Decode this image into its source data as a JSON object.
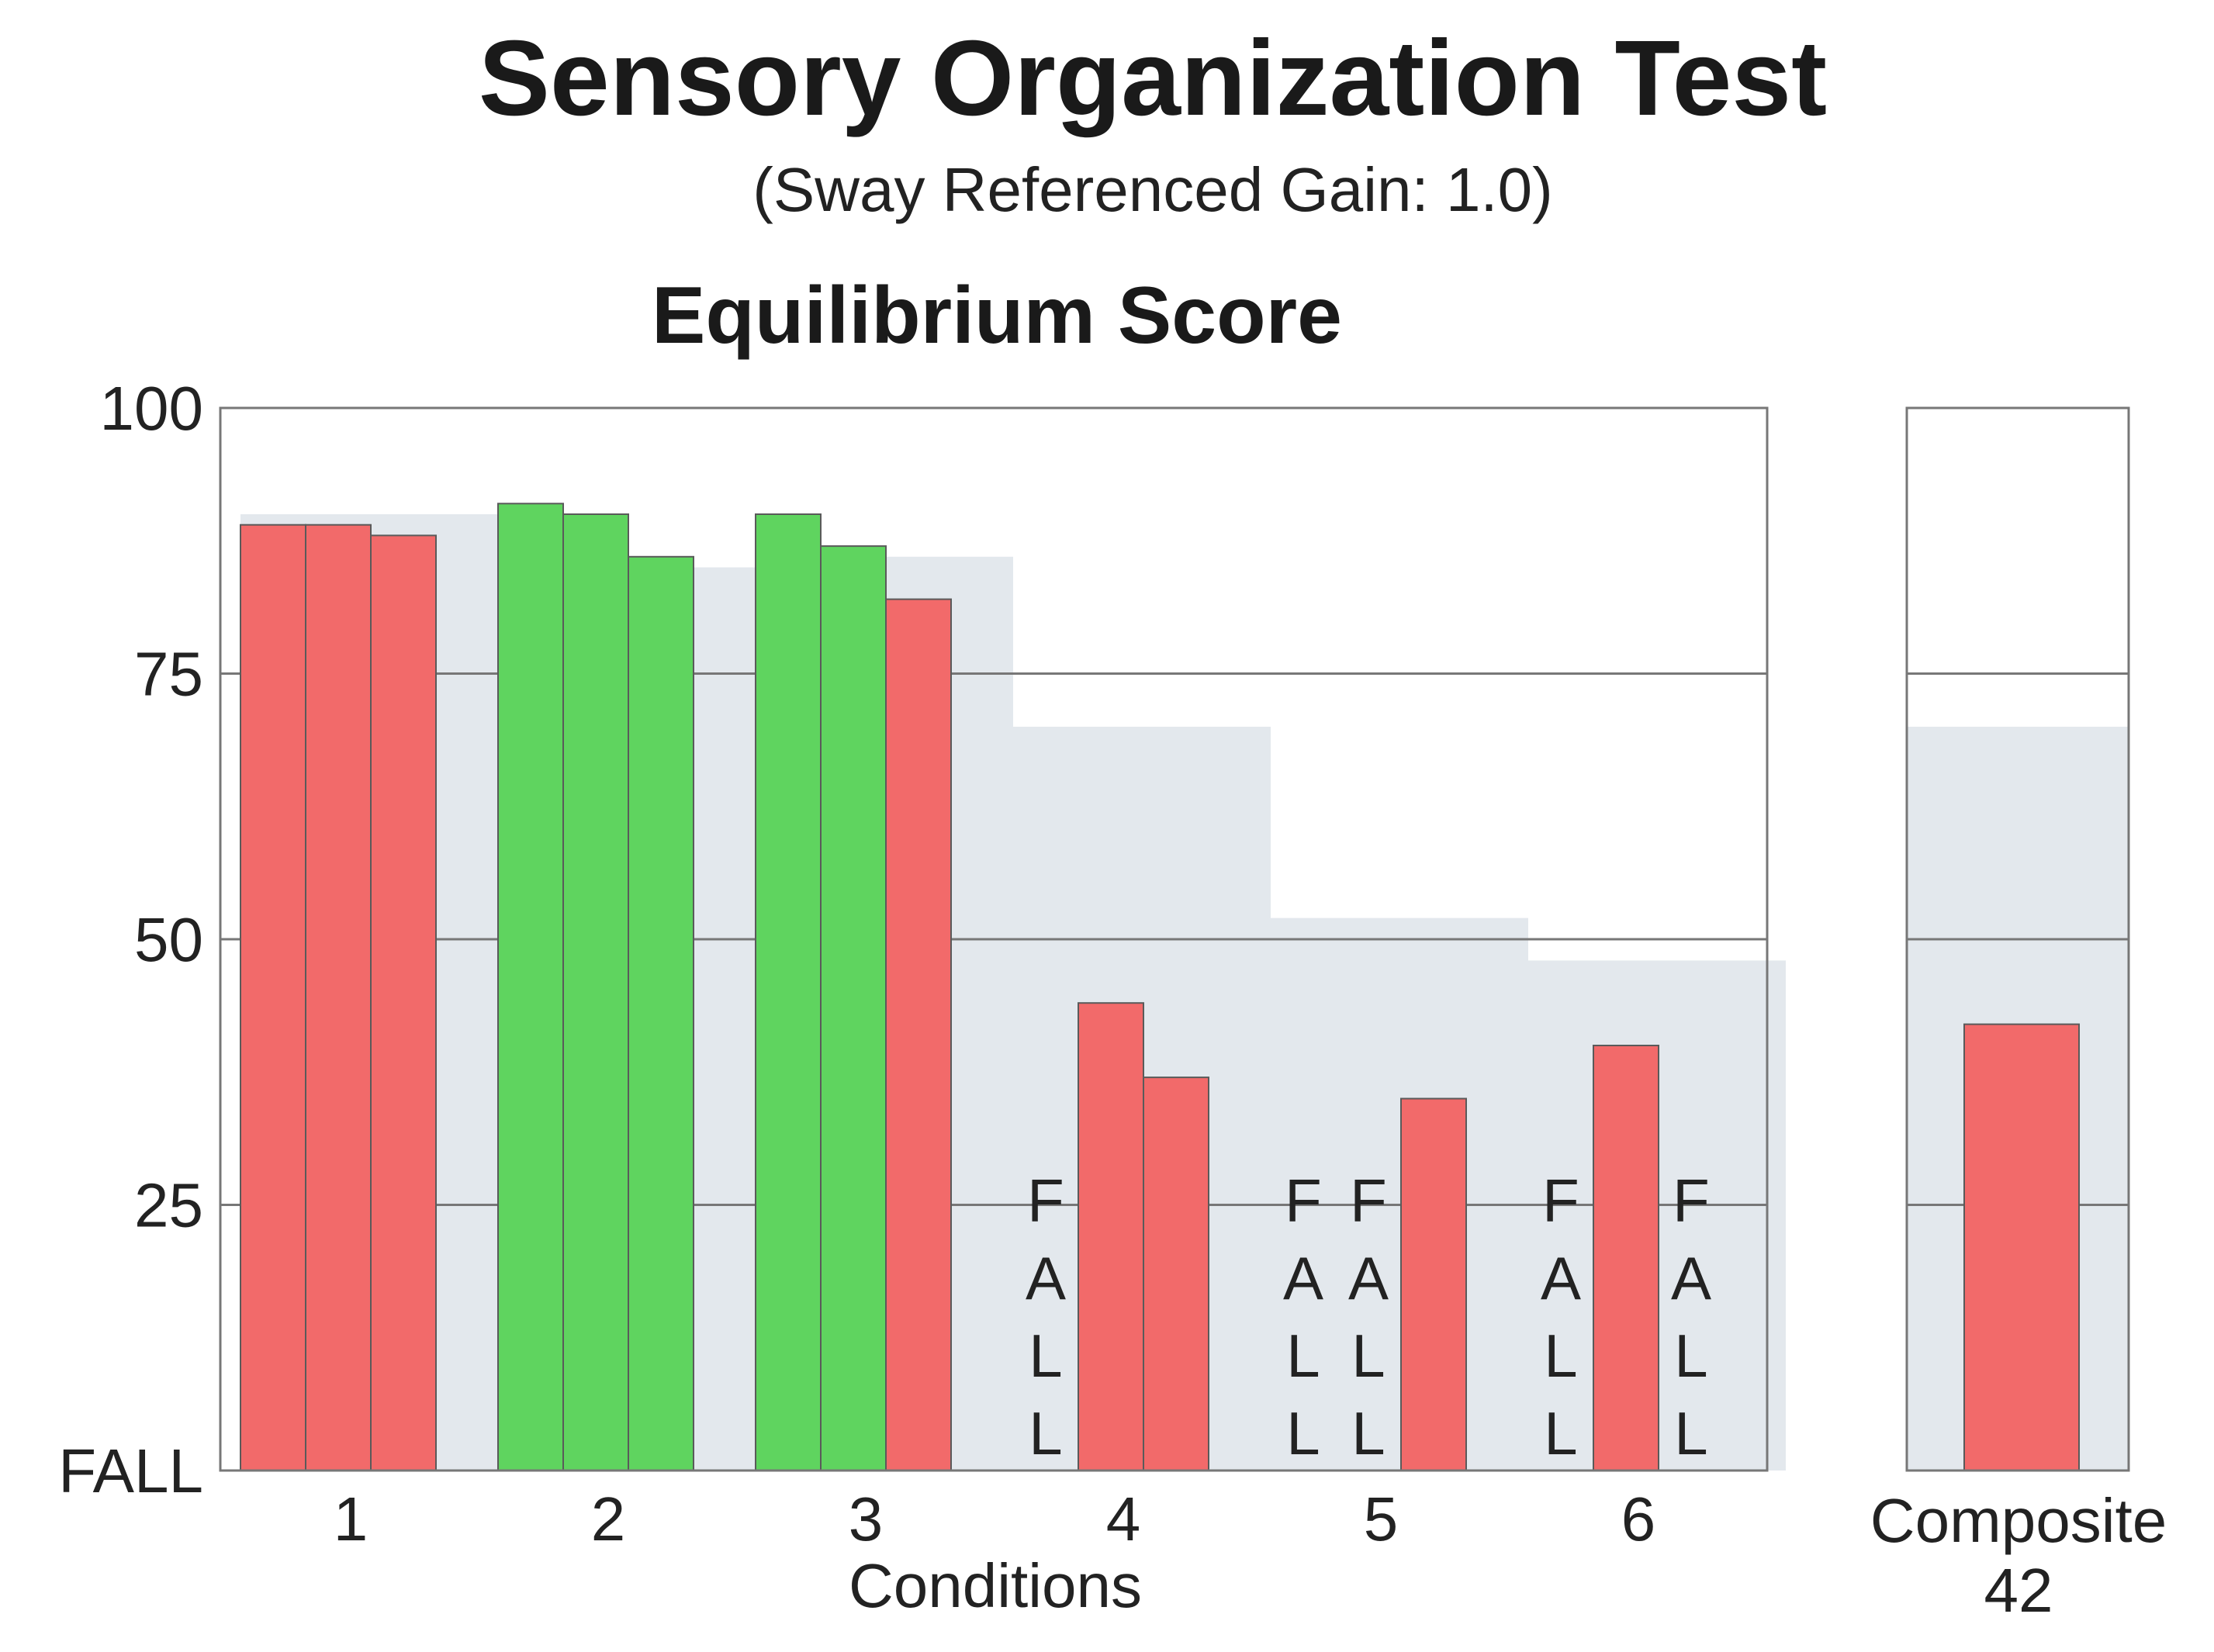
{
  "chart_data": {
    "type": "bar",
    "title": "Sensory Organization Test",
    "subtitle": "(Sway Referenced Gain: 1.0)",
    "panel_title": "Equilibrium Score",
    "xlabel": "Conditions",
    "ylabel": "",
    "ylim": [
      0,
      100
    ],
    "y_ticks": [
      {
        "value": 100,
        "label": "100"
      },
      {
        "value": 75,
        "label": "75"
      },
      {
        "value": 50,
        "label": "50"
      },
      {
        "value": 25,
        "label": "25"
      },
      {
        "value": 0,
        "label": "FALL"
      }
    ],
    "grid": true,
    "colors": {
      "below_normal": "#f26a6a",
      "normal": "#5fd45f",
      "normal_range": "#e3e8ed",
      "grid": "#777777",
      "frame": "#777777"
    },
    "fall_label": "FALL",
    "conditions": [
      {
        "label": "1",
        "normal_limit": 90,
        "trials": [
          {
            "value": 89,
            "status": "below_normal"
          },
          {
            "value": 89,
            "status": "below_normal"
          },
          {
            "value": 88,
            "status": "below_normal"
          }
        ]
      },
      {
        "label": "2",
        "normal_limit": 85,
        "trials": [
          {
            "value": 91,
            "status": "normal"
          },
          {
            "value": 90,
            "status": "normal"
          },
          {
            "value": 86,
            "status": "normal"
          }
        ]
      },
      {
        "label": "3",
        "normal_limit": 86,
        "trials": [
          {
            "value": 90,
            "status": "normal"
          },
          {
            "value": 87,
            "status": "normal"
          },
          {
            "value": 82,
            "status": "below_normal"
          }
        ]
      },
      {
        "label": "4",
        "normal_limit": 70,
        "trials": [
          {
            "value": null,
            "status": "fall"
          },
          {
            "value": 44,
            "status": "below_normal"
          },
          {
            "value": 37,
            "status": "below_normal"
          }
        ]
      },
      {
        "label": "5",
        "normal_limit": 52,
        "trials": [
          {
            "value": null,
            "status": "fall"
          },
          {
            "value": null,
            "status": "fall"
          },
          {
            "value": 35,
            "status": "below_normal"
          }
        ]
      },
      {
        "label": "6",
        "normal_limit": 48,
        "trials": [
          {
            "value": null,
            "status": "fall"
          },
          {
            "value": 40,
            "status": "below_normal"
          },
          {
            "value": null,
            "status": "fall"
          }
        ]
      }
    ],
    "composite": {
      "label": "Composite",
      "value": 42,
      "value_label": "42",
      "normal_limit": 70,
      "status": "below_normal"
    }
  }
}
